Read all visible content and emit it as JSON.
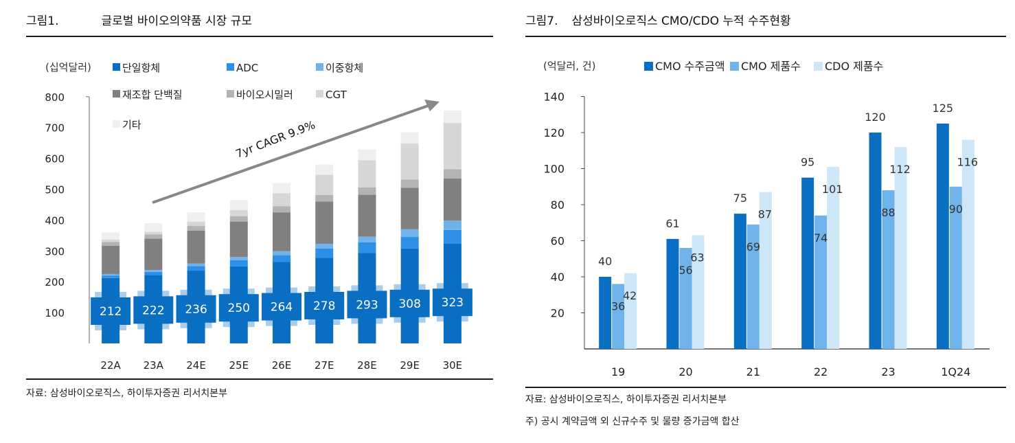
{
  "left": {
    "figure_number": "그림1.",
    "figure_title": "글로벌 바이오의약품 시장 규모",
    "source_note": "자료: 삼성바이오로직스, 하이투자증권 리서치본부",
    "chart_data": {
      "type": "bar",
      "stacked": true,
      "unit_label": "(십억달러)",
      "categories": [
        "22A",
        "23A",
        "24E",
        "25E",
        "26E",
        "27E",
        "28E",
        "29E",
        "30E"
      ],
      "ylim": [
        0,
        800
      ],
      "yticks": [
        100,
        200,
        300,
        400,
        500,
        600,
        700,
        800
      ],
      "annotation": "7yr CAGR 9.9%",
      "series": [
        {
          "name": "단일항체",
          "color": "#0a6fc2",
          "values": [
            212,
            222,
            236,
            250,
            264,
            278,
            293,
            308,
            323
          ]
        },
        {
          "name": "ADC",
          "color": "#2e8fe6",
          "values": [
            8,
            10,
            15,
            20,
            22,
            30,
            35,
            38,
            45
          ]
        },
        {
          "name": "이중항체",
          "color": "#6fb3ea",
          "values": [
            5,
            6,
            8,
            10,
            13,
            15,
            18,
            24,
            30
          ]
        },
        {
          "name": "재조합 단백질",
          "color": "#808080",
          "values": [
            92,
            102,
            107,
            115,
            126,
            137,
            136,
            135,
            137
          ]
        },
        {
          "name": "바이오시밀러",
          "color": "#b3b3b3",
          "values": [
            12,
            13,
            15,
            17,
            20,
            21,
            24,
            26,
            30
          ]
        },
        {
          "name": "CGT",
          "color": "#d6d6d6",
          "values": [
            8,
            9,
            14,
            20,
            42,
            66,
            88,
            117,
            150
          ]
        },
        {
          "name": "기타",
          "color": "#efefef",
          "values": [
            23,
            28,
            30,
            33,
            33,
            33,
            35,
            37,
            40
          ]
        }
      ],
      "data_labels": [
        "212",
        "222",
        "236",
        "250",
        "264",
        "278",
        "293",
        "308",
        "323"
      ]
    }
  },
  "right": {
    "figure_number": "그림7.",
    "figure_title": "삼성바이오로직스 CMO/CDO 누적 수주현황",
    "source_note": "자료: 삼성바이오로직스, 하이투자증권 리서치본부",
    "footnote": "주) 공시 계약금액 외 신규수주 및 물량 증가금액 합산",
    "chart_data": {
      "type": "bar",
      "unit_label": "(억달러, 건)",
      "categories": [
        "19",
        "20",
        "21",
        "22",
        "23",
        "1Q24"
      ],
      "ylim": [
        0,
        140
      ],
      "yticks": [
        20,
        40,
        60,
        80,
        100,
        120,
        140
      ],
      "series": [
        {
          "name": "CMO 수주금액",
          "color": "#0a6fc2",
          "values": [
            40,
            61,
            75,
            95,
            120,
            125
          ]
        },
        {
          "name": "CMO 제품수",
          "color": "#6fb3ea",
          "values": [
            36,
            56,
            69,
            74,
            88,
            90
          ]
        },
        {
          "name": "CDO 제품수",
          "color": "#cde6f8",
          "values": [
            42,
            63,
            87,
            101,
            112,
            116
          ]
        }
      ]
    }
  }
}
